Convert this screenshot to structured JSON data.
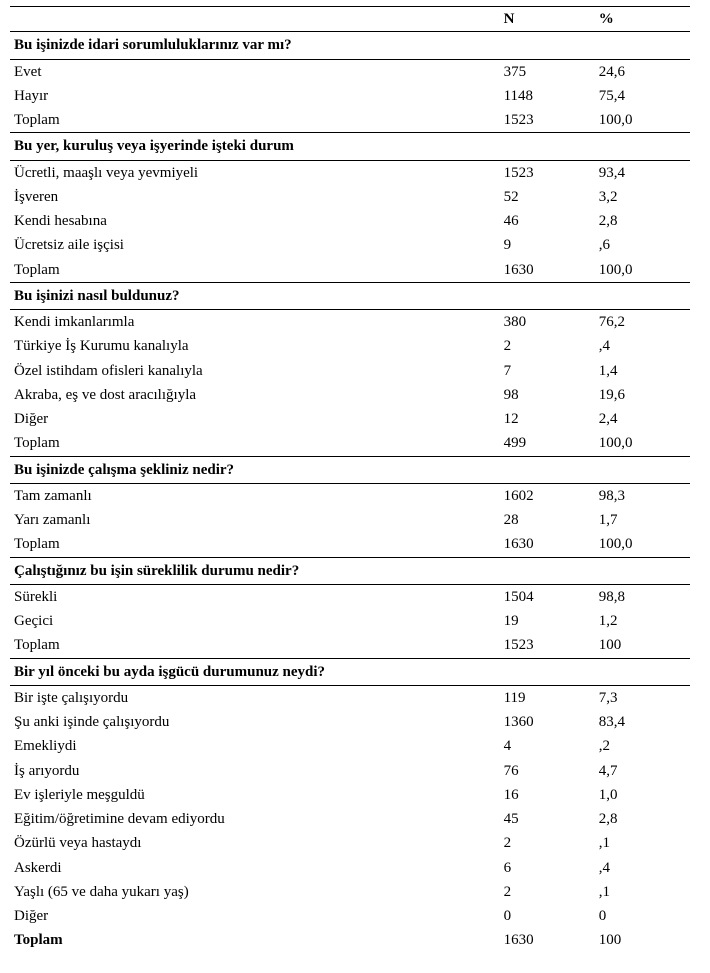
{
  "columns": {
    "n": "N",
    "pct": "%"
  },
  "sections": [
    {
      "title": "Bu işinizde idari sorumluluklarınız var mı?",
      "rows": [
        {
          "label": "Evet",
          "n": "375",
          "pct": "24,6"
        },
        {
          "label": "Hayır",
          "n": "1148",
          "pct": "75,4"
        },
        {
          "label": "Toplam",
          "n": "1523",
          "pct": "100,0"
        }
      ]
    },
    {
      "title": "Bu yer, kuruluş veya işyerinde işteki durum",
      "rows": [
        {
          "label": "Ücretli, maaşlı veya yevmiyeli",
          "n": "1523",
          "pct": "93,4"
        },
        {
          "label": "İşveren",
          "n": "52",
          "pct": "3,2"
        },
        {
          "label": "Kendi hesabına",
          "n": "46",
          "pct": "2,8"
        },
        {
          "label": "Ücretsiz aile işçisi",
          "n": "9",
          "pct": ",6"
        },
        {
          "label": "Toplam",
          "n": "1630",
          "pct": "100,0"
        }
      ]
    },
    {
      "title": "Bu işinizi nasıl buldunuz?",
      "rows": [
        {
          "label": "Kendi imkanlarımla",
          "n": "380",
          "pct": "76,2"
        },
        {
          "label": "Türkiye İş Kurumu kanalıyla",
          "n": "2",
          "pct": ",4"
        },
        {
          "label": "Özel istihdam ofisleri kanalıyla",
          "n": "7",
          "pct": "1,4"
        },
        {
          "label": "Akraba, eş ve dost aracılığıyla",
          "n": "98",
          "pct": "19,6"
        },
        {
          "label": "Diğer",
          "n": "12",
          "pct": "2,4"
        },
        {
          "label": "Toplam",
          "n": "499",
          "pct": "100,0"
        }
      ]
    },
    {
      "title": "Bu işinizde çalışma şekliniz nedir?",
      "rows": [
        {
          "label": "Tam zamanlı",
          "n": "1602",
          "pct": "98,3"
        },
        {
          "label": "Yarı zamanlı",
          "n": "28",
          "pct": "1,7"
        },
        {
          "label": "Toplam",
          "n": "1630",
          "pct": "100,0"
        }
      ]
    },
    {
      "title": "Çalıştığınız bu işin süreklilik durumu nedir?",
      "rows": [
        {
          "label": "Sürekli",
          "n": "1504",
          "pct": "98,8"
        },
        {
          "label": "Geçici",
          "n": "19",
          "pct": "1,2"
        },
        {
          "label": "Toplam",
          "n": "1523",
          "pct": "100"
        }
      ]
    },
    {
      "title": "Bir yıl önceki bu ayda işgücü durumunuz neydi?",
      "rows": [
        {
          "label": "Bir işte çalışıyordu",
          "n": "119",
          "pct": "7,3"
        },
        {
          "label": "Şu anki işinde çalışıyordu",
          "n": "1360",
          "pct": "83,4"
        },
        {
          "label": "Emekliydi",
          "n": "4",
          "pct": ",2"
        },
        {
          "label": "İş arıyordu",
          "n": "76",
          "pct": "4,7"
        },
        {
          "label": "Ev işleriyle meşguldü",
          "n": "16",
          "pct": "1,0"
        },
        {
          "label": "Eğitim/öğretimine devam ediyordu",
          "n": "45",
          "pct": "2,8"
        },
        {
          "label": "Özürlü veya hastaydı",
          "n": "2",
          "pct": ",1"
        },
        {
          "label": "Askerdi",
          "n": "6",
          "pct": ",4"
        },
        {
          "label": "Yaşlı (65 ve daha yukarı yaş)",
          "n": "2",
          "pct": ",1"
        },
        {
          "label": " Diğer",
          "n": "0",
          "pct": "0"
        },
        {
          "label": "Toplam",
          "bold": true,
          "n": "1630",
          "pct": "100"
        }
      ]
    }
  ]
}
